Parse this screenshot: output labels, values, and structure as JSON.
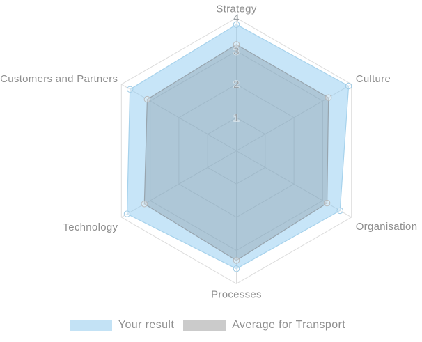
{
  "legend": {
    "items": [
      {
        "label": "Your result",
        "color": "#c3e2f5"
      },
      {
        "label": "Average for Transport",
        "color": "#cbcbcb"
      }
    ]
  },
  "chart_data": {
    "type": "radar",
    "categories": [
      "Strategy",
      "Culture",
      "Organisation",
      "Processes",
      "Technology",
      "Customers and Partners"
    ],
    "series": [
      {
        "name": "Your result",
        "values": [
          3.8,
          3.9,
          3.6,
          3.55,
          3.8,
          3.7
        ],
        "fill": "rgba(137,199,240,0.47)",
        "stroke": "#a6d2ec",
        "marker_stroke": "#9fcbe5"
      },
      {
        "name": "Average for Transport",
        "values": [
          3.2,
          3.2,
          3.15,
          3.3,
          3.2,
          3.1
        ],
        "fill": "rgba(108,118,126,0.27)",
        "stroke": "rgba(140,148,155,0.75)",
        "marker_stroke": "#b9babb"
      }
    ],
    "ticks": [
      1,
      2,
      3,
      4
    ],
    "min": 0,
    "max": 4,
    "grid": true,
    "grid_color": "#dcdcdc",
    "tick_color": "#9aa1a6",
    "label_color": "#8e8e8e",
    "legend_position": "bottom"
  }
}
